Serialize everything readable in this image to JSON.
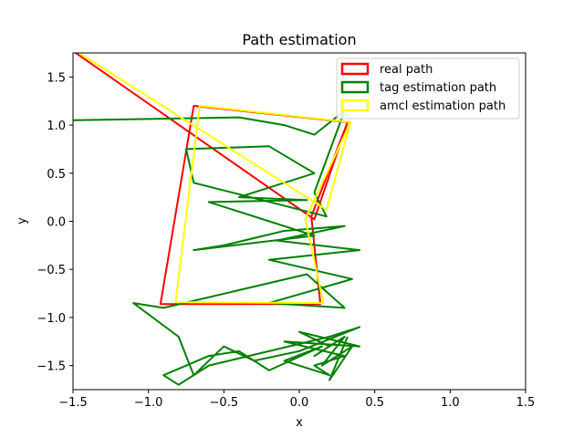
{
  "chart_data": {
    "type": "line",
    "title": "Path estimation",
    "xlabel": "x",
    "ylabel": "y",
    "xlim": [
      -1.5,
      1.5
    ],
    "ylim": [
      -1.75,
      1.75
    ],
    "xticks": [
      "-1.5",
      "-1.0",
      "-0.5",
      "0.0",
      "0.5",
      "1.0",
      "1.5"
    ],
    "yticks": [
      "-1.5",
      "-1.0",
      "-0.5",
      "0.0",
      "0.5",
      "1.0",
      "1.5"
    ],
    "grid": false,
    "legend_position": "top-right",
    "series": [
      {
        "name": "real path",
        "color": "#ff0000",
        "x": [
          -1.5,
          0.1,
          0.32,
          0.08,
          0.14,
          -0.92,
          -0.7,
          0.32
        ],
        "y": [
          1.77,
          0.02,
          1.03,
          0.05,
          -0.86,
          -0.86,
          1.2,
          1.03
        ]
      },
      {
        "name": "tag estimation path",
        "color": "#008000",
        "x": [
          -1.5,
          -0.4,
          -0.1,
          0.1,
          0.3,
          0.1,
          0.18,
          -0.7,
          -0.75,
          -0.2,
          0.1,
          -0.4,
          0.05,
          -0.6,
          0.1,
          -0.7,
          -0.5,
          -0.1,
          0.3,
          -0.15,
          0.4,
          -0.2,
          0.35,
          -0.2,
          0.3,
          0.05,
          -0.9,
          -1.1,
          -0.8,
          -0.7,
          -0.5,
          -0.3,
          0.0,
          0.4,
          0.2,
          -0.6,
          -0.8,
          -0.9,
          -0.6,
          -0.4,
          -0.2,
          0.15,
          -0.1,
          0.2,
          0.1,
          0.3,
          -0.1,
          0.4,
          0.0,
          0.2,
          0.25,
          0.1,
          0.3,
          0.15,
          0.35,
          0.2,
          0.32
        ],
        "y": [
          1.05,
          1.08,
          1.0,
          0.9,
          1.15,
          0.3,
          0.05,
          0.4,
          0.75,
          0.78,
          0.5,
          0.25,
          0.22,
          0.2,
          -0.15,
          -0.3,
          -0.25,
          -0.1,
          -0.05,
          -0.2,
          -0.3,
          -0.4,
          -0.6,
          -0.85,
          -0.9,
          -0.55,
          -0.9,
          -0.85,
          -1.2,
          -1.6,
          -1.3,
          -1.45,
          -1.35,
          -1.1,
          -1.2,
          -1.5,
          -1.7,
          -1.6,
          -1.4,
          -1.35,
          -1.55,
          -1.3,
          -1.45,
          -1.6,
          -1.5,
          -1.4,
          -1.25,
          -1.3,
          -1.15,
          -1.3,
          -1.25,
          -1.4,
          -1.2,
          -1.5,
          -1.3,
          -1.65,
          -1.2
        ]
      },
      {
        "name": "amcl estimation path",
        "color": "#ffff00",
        "x": [
          -1.45,
          0.18,
          0.34,
          0.04,
          0.16,
          -0.82,
          -0.66,
          0.34
        ],
        "y": [
          1.74,
          0.12,
          1.03,
          0.02,
          -0.85,
          -0.84,
          1.2,
          1.03
        ]
      }
    ]
  }
}
